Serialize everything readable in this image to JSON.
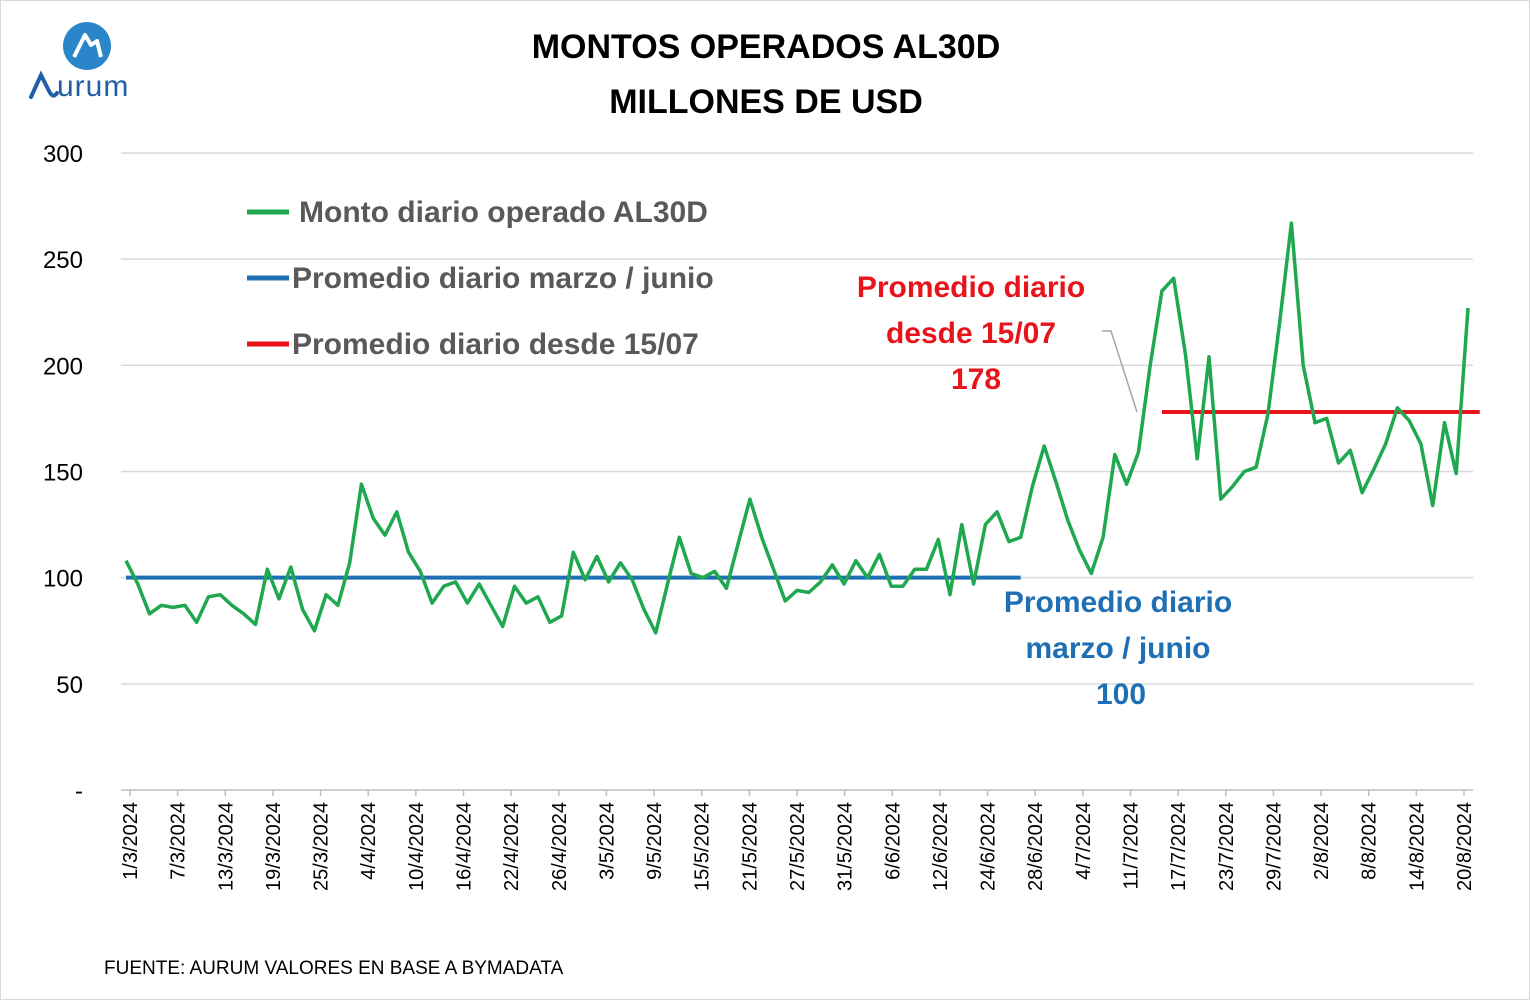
{
  "logo": {
    "text": "urum",
    "name": "Aurum"
  },
  "colors": {
    "series": "#1fa84f",
    "avg_march_june": "#1f6fb5",
    "avg_since_1507": "#e8141c",
    "grid": "#d9d9d9"
  },
  "chart_data": {
    "type": "line",
    "title": "MONTOS OPERADOS AL30D",
    "subtitle": "MILLONES DE USD",
    "ylim": [
      0,
      300
    ],
    "yticks": [
      0,
      50,
      100,
      150,
      200,
      250,
      300
    ],
    "ytick_labels": [
      "-",
      "50",
      "100",
      "150",
      "200",
      "250",
      "300"
    ],
    "grid": true,
    "legend_position": "top-left",
    "xtick_labels": [
      "1/3/2024",
      "7/3/2024",
      "13/3/2024",
      "19/3/2024",
      "25/3/2024",
      "4/4/2024",
      "10/4/2024",
      "16/4/2024",
      "22/4/2024",
      "26/4/2024",
      "3/5/2024",
      "9/5/2024",
      "15/5/2024",
      "21/5/2024",
      "27/5/2024",
      "31/5/2024",
      "6/6/2024",
      "12/6/2024",
      "24/6/2024",
      "28/6/2024",
      "4/7/2024",
      "11/7/2024",
      "17/7/2024",
      "23/7/2024",
      "29/7/2024",
      "2/8/2024",
      "8/8/2024",
      "14/8/2024",
      "20/8/2024"
    ],
    "series": [
      {
        "name": "Monto diario operado AL30D",
        "values": [
          108,
          97,
          83,
          87,
          86,
          87,
          79,
          91,
          92,
          87,
          83,
          78,
          104,
          90,
          105,
          85,
          75,
          92,
          87,
          107,
          144,
          128,
          120,
          131,
          112,
          103,
          88,
          96,
          98,
          88,
          97,
          87,
          77,
          96,
          88,
          91,
          79,
          82,
          112,
          99,
          110,
          98,
          107,
          99,
          85,
          74,
          97,
          119,
          102,
          100,
          103,
          95,
          116,
          137,
          119,
          104,
          89,
          94,
          93,
          98,
          106,
          97,
          108,
          100,
          111,
          96,
          96,
          104,
          104,
          118,
          92,
          125,
          97,
          125,
          131,
          117,
          119,
          143,
          162,
          145,
          127,
          113,
          102,
          119,
          158,
          144,
          159,
          200,
          235,
          241,
          205,
          156,
          204,
          137,
          143,
          150,
          152,
          177,
          220,
          267,
          200,
          173,
          175,
          154,
          160,
          140,
          151,
          163,
          180,
          174,
          163,
          134,
          173,
          149,
          227
        ]
      },
      {
        "name": "Promedio diario marzo / junio",
        "value": 100,
        "x_from_index": 0,
        "x_to_index": 76
      },
      {
        "name": "Promedio diario desde 15/07",
        "value": 178,
        "x_from_index": 88,
        "x_to_index": 115
      }
    ],
    "annotations": {
      "march_june": [
        "Promedio diario",
        "marzo / junio",
        "100"
      ],
      "since_1507": [
        "Promedio diario",
        "desde 15/07",
        "178"
      ]
    }
  },
  "source": "FUENTE: AURUM VALORES EN BASE A BYMADATA"
}
